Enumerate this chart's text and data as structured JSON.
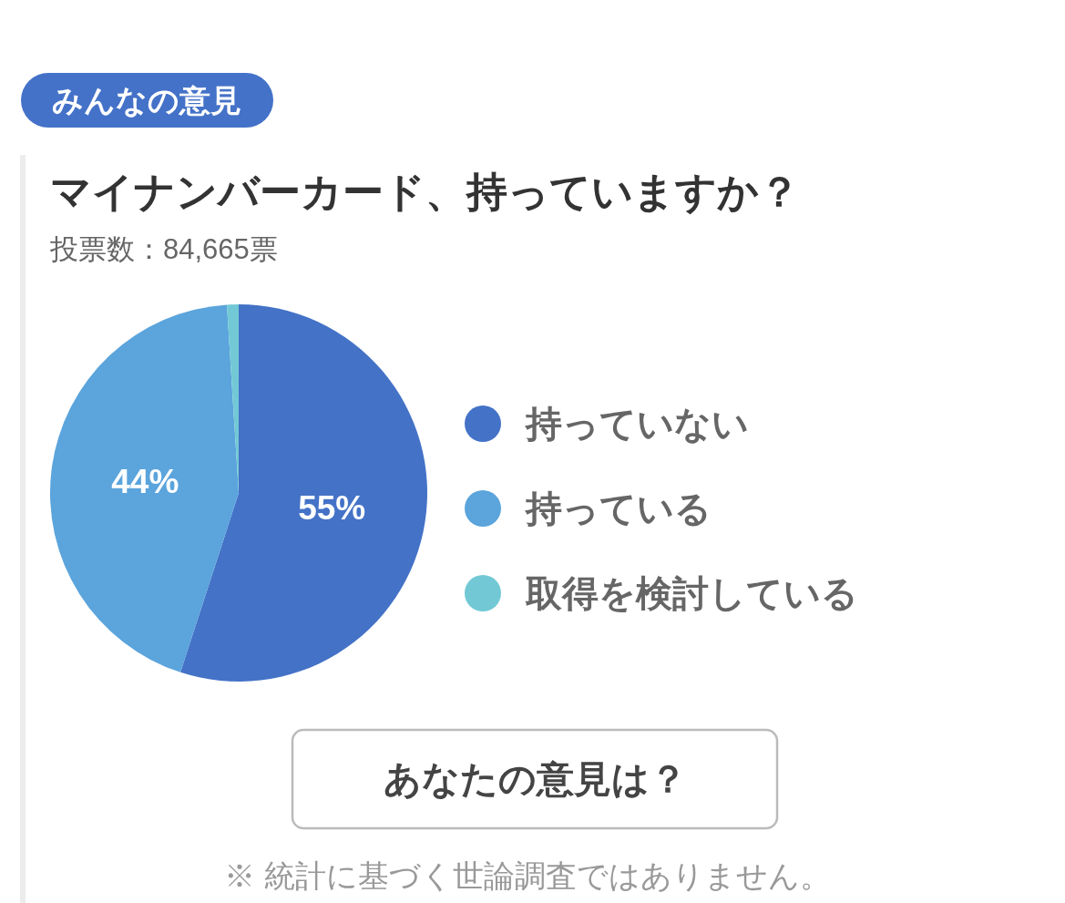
{
  "chart_data": {
    "type": "pie",
    "title": "マイナンバーカード、持っていますか？",
    "subtitle": "投票数：84,665票",
    "categories": [
      "持っていない",
      "持っている",
      "取得を検討している"
    ],
    "values": [
      55,
      44,
      1
    ],
    "colors": [
      "#4472c7",
      "#5ba4dc",
      "#72c9d5"
    ],
    "value_labels": [
      "55%",
      "44%",
      null
    ],
    "legend": "right",
    "annotations": [
      "みんなの意見",
      "あなたの意見は？",
      "※ 統計に基づく世論調査ではありません。"
    ]
  }
}
